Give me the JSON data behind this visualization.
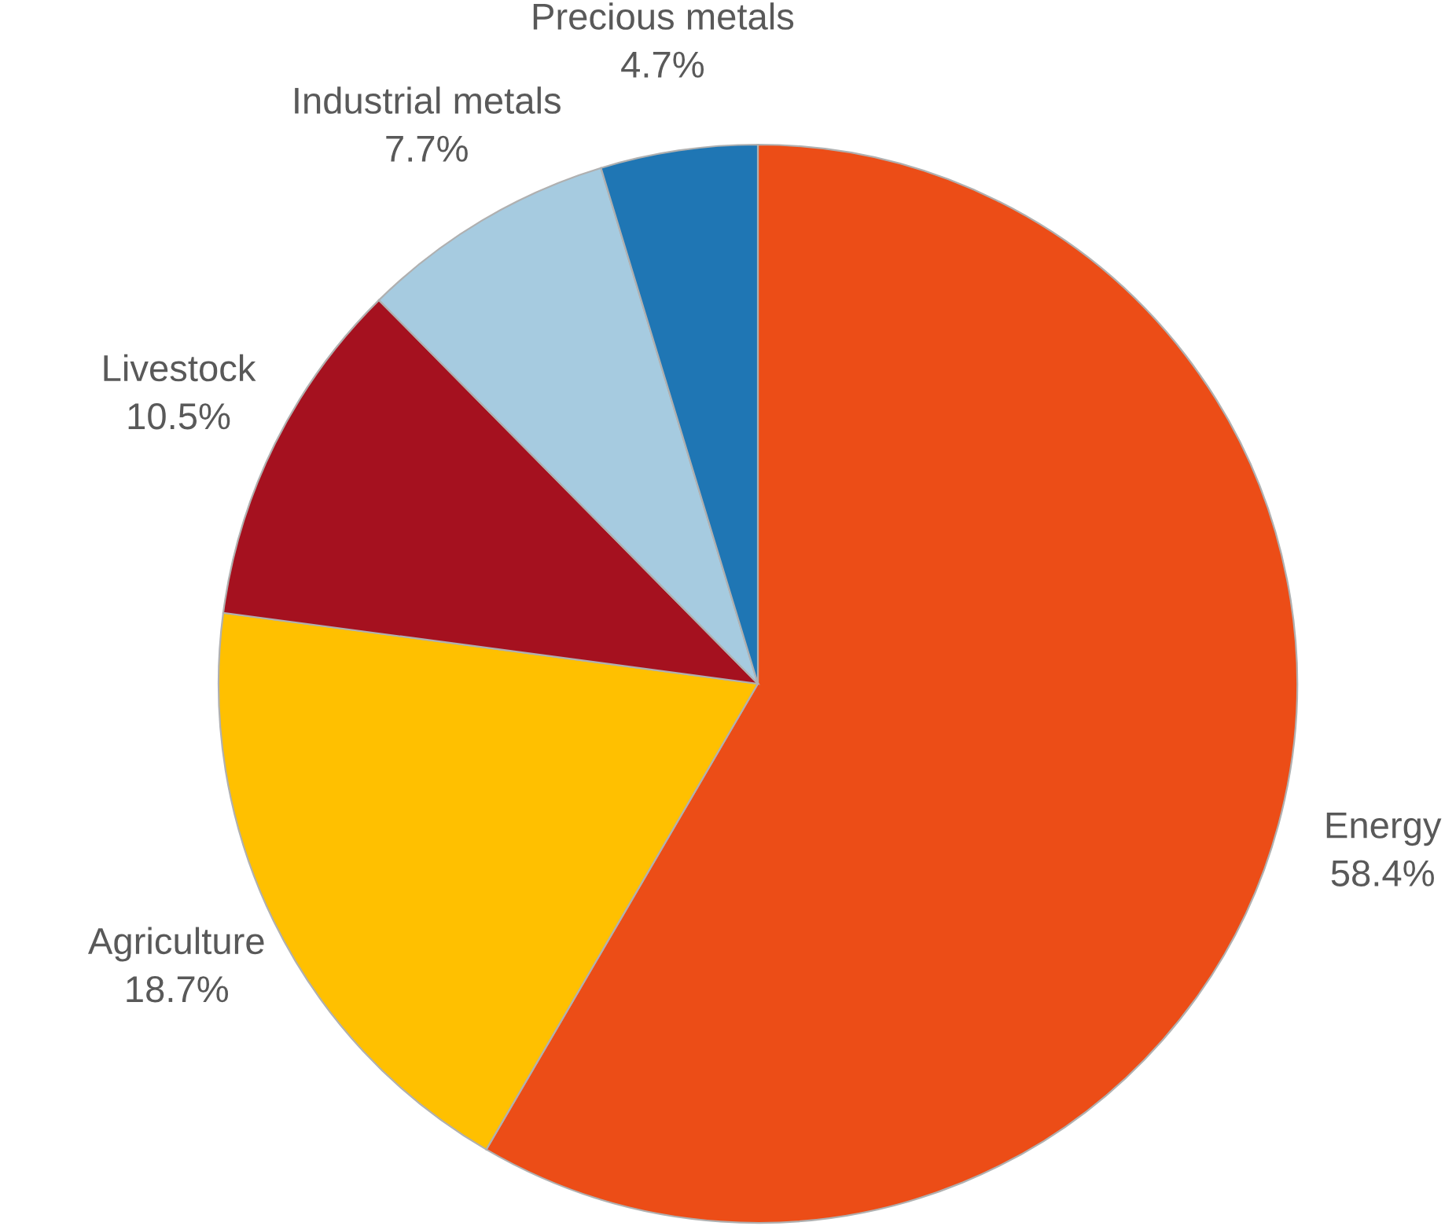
{
  "chart_data": {
    "type": "pie",
    "categories": [
      "Energy",
      "Agriculture",
      "Livestock",
      "Industrial metals",
      "Precious metals"
    ],
    "values": [
      58.4,
      18.7,
      10.5,
      7.7,
      4.7
    ],
    "colors": [
      "#ec4d17",
      "#ffc000",
      "#a5111f",
      "#a6cbe0",
      "#1f76b4"
    ],
    "value_labels": [
      "58.4%",
      "18.7%",
      "10.5%",
      "7.7%",
      "4.7%"
    ],
    "legend": false
  }
}
